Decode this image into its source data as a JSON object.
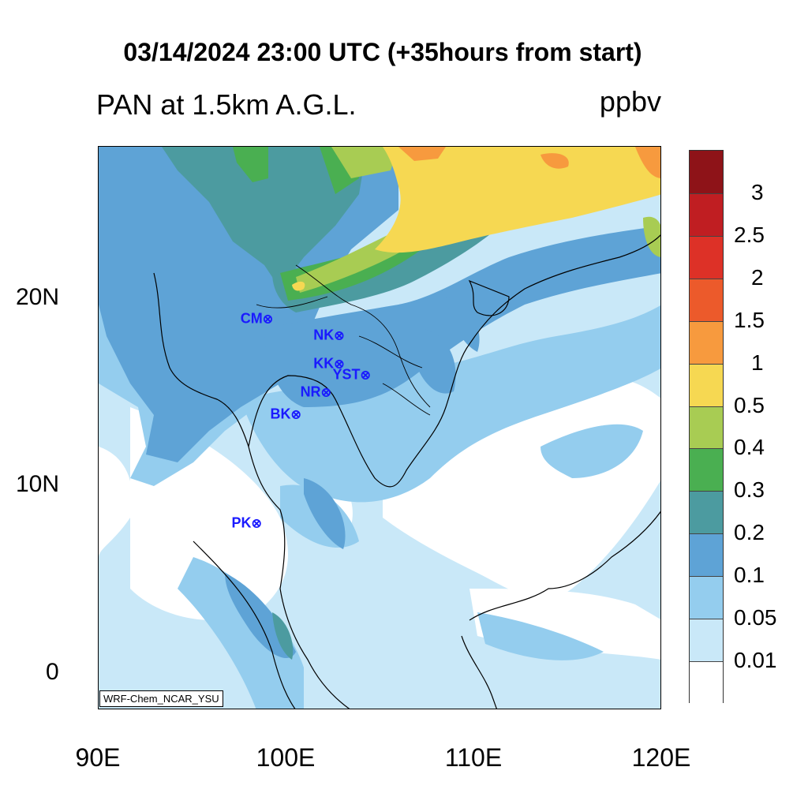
{
  "title": "03/14/2024 23:00 UTC (+35hours from start)",
  "subtitle": "PAN at 1.5km A.G.L.",
  "units": "ppbv",
  "credit": "WRF-Chem_NCAR_YSU",
  "x_ticks": [
    "90E",
    "100E",
    "110E",
    "120E"
  ],
  "y_ticks": [
    "20N",
    "10N",
    "0"
  ],
  "colorbar_labels": [
    "3",
    "2.5",
    "2",
    "1.5",
    "1",
    "0.5",
    "0.4",
    "0.3",
    "0.2",
    "0.1",
    "0.05",
    "0.01"
  ],
  "colorbar_colors": [
    "#8e1318",
    "#c01e22",
    "#dd3127",
    "#ec5a2b",
    "#f79a3e",
    "#f6d852",
    "#a8cc53",
    "#4aaf51",
    "#4c9ba0",
    "#5ea3d6",
    "#94cdee",
    "#c9e8f8",
    "#ffffff"
  ],
  "stations": [
    {
      "label": "CM",
      "lon": 99.0,
      "lat": 18.8
    },
    {
      "label": "NK",
      "lon": 102.8,
      "lat": 17.9
    },
    {
      "label": "KK",
      "lon": 102.8,
      "lat": 16.4
    },
    {
      "label": "YST",
      "lon": 104.2,
      "lat": 15.8
    },
    {
      "label": "NR",
      "lon": 102.1,
      "lat": 14.9
    },
    {
      "label": "BK",
      "lon": 100.5,
      "lat": 13.7
    },
    {
      "label": "PK",
      "lon": 98.4,
      "lat": 7.9
    }
  ],
  "map_extent": {
    "lon": [
      90,
      120
    ],
    "lat": [
      -2,
      28
    ]
  },
  "station_symbol": "⊗"
}
